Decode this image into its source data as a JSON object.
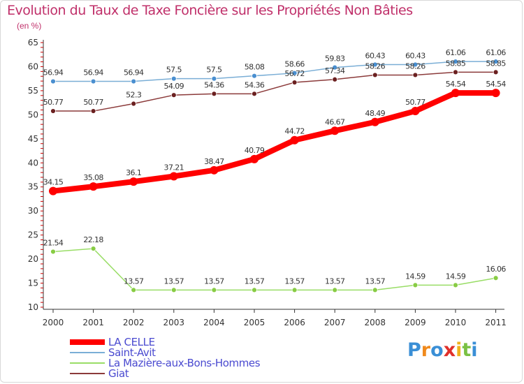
{
  "header": {
    "title": "Evolution du Taux de Taxe Foncière sur les Propriétés Non Bâties",
    "unit": "(en %)"
  },
  "logo": {
    "text": "Proxiti"
  },
  "chart_data": {
    "type": "line",
    "title": "Evolution du Taux de Taxe Foncière sur les Propriétés Non Bâties",
    "ylabel": "(en %)",
    "xlabel": "",
    "ylim": [
      10,
      65
    ],
    "yticks": [
      10,
      15,
      20,
      25,
      30,
      35,
      40,
      45,
      50,
      55,
      60,
      65
    ],
    "grid": false,
    "legend_position": "bottom-left",
    "categories": [
      "2000",
      "2001",
      "2002",
      "2003",
      "2004",
      "2005",
      "2006",
      "2007",
      "2008",
      "2009",
      "2010",
      "2011"
    ],
    "series": [
      {
        "name": "LA CELLE",
        "color": "#ff0000",
        "values": [
          34.15,
          35.08,
          36.1,
          37.21,
          38.47,
          40.79,
          44.72,
          46.67,
          48.49,
          50.77,
          54.54,
          54.54
        ],
        "labels": [
          "34.15",
          "35.08",
          "36.1",
          "37.21",
          "38.47",
          "40.79",
          "44.72",
          "46.67",
          "48.49",
          "50.77",
          "54.54",
          "54.54"
        ]
      },
      {
        "name": "Saint-Avit",
        "color": "#7aaed6",
        "values": [
          56.94,
          56.94,
          56.94,
          57.5,
          57.5,
          58.08,
          58.66,
          59.83,
          60.43,
          60.43,
          61.06,
          61.06
        ],
        "labels": [
          "56.94",
          "56.94",
          "56.94",
          "57.5",
          "57.5",
          "58.08",
          "58.66",
          "59.83",
          "60.43",
          "60.43",
          "61.06",
          "61.06"
        ]
      },
      {
        "name": "La Mazière-aux-Bons-Hommes",
        "color": "#99dd66",
        "values": [
          21.54,
          22.18,
          13.57,
          13.57,
          13.57,
          13.57,
          13.57,
          13.57,
          13.57,
          14.59,
          14.59,
          16.06
        ],
        "labels": [
          "21.54",
          "22.18",
          "13.57",
          "13.57",
          "13.57",
          "13.57",
          "13.57",
          "13.57",
          "13.57",
          "14.59",
          "14.59",
          "16.06"
        ]
      },
      {
        "name": "Giat",
        "color": "#8b3a3a",
        "values": [
          50.77,
          50.77,
          52.3,
          54.09,
          54.36,
          54.36,
          56.72,
          57.34,
          58.26,
          58.26,
          58.85,
          58.85
        ],
        "labels": [
          "50.77",
          "50.77",
          "52.3",
          "54.09",
          "54.36",
          "54.36",
          "56.72",
          "57.34",
          "58.26",
          "58.26",
          "58.85",
          "58.85"
        ]
      }
    ]
  }
}
